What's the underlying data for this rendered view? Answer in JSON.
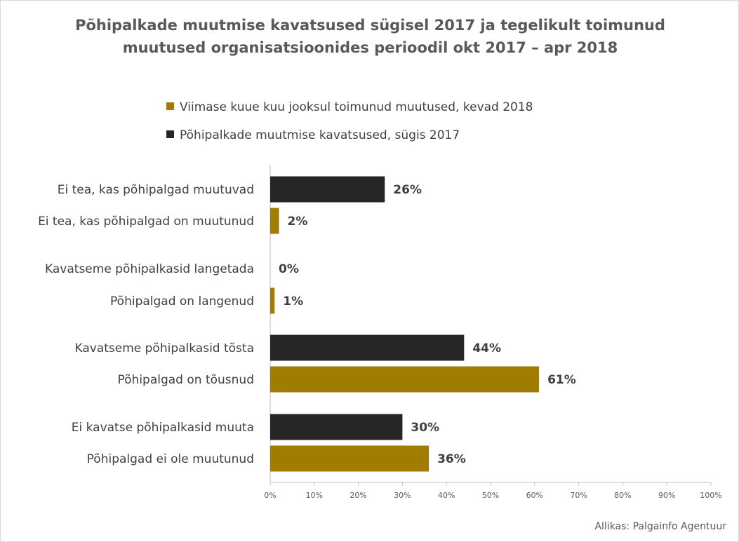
{
  "title": "Põhipalkade muutmise kavatsused sügisel 2017 ja tegelikult toimunud muutused organisatsioonides perioodil okt 2017 – apr 2018",
  "legend": [
    {
      "label": "Viimase kuue kuu jooksul toimunud muutused, kevad 2018",
      "color": "#a07d00"
    },
    {
      "label": "Põhipalkade muutmise kavatsused, sügis 2017",
      "color": "#262626"
    }
  ],
  "source": "Allikas: Palgainfo Agentuur",
  "chart_data": {
    "type": "bar",
    "orientation": "horizontal",
    "categories": [
      "Ei tea, kas põhipalgad muutuvad",
      "Ei tea, kas põhipalgad on muutunud",
      "Kavatseme põhipalkasid langetada",
      "Põhipalgad on langenud",
      "Kavatseme põhipalkasid tõsta",
      "Põhipalgad on tõusnud",
      "Ei kavatse põhipalkasid muuta",
      "Põhipalgad ei ole muutunud"
    ],
    "values": [
      26,
      2,
      0,
      1,
      44,
      61,
      30,
      36
    ],
    "value_labels": [
      "26%",
      "2%",
      "0%",
      "1%",
      "44%",
      "61%",
      "30%",
      "36%"
    ],
    "bar_series": [
      "sügis 2017",
      "kevad 2018",
      "sügis 2017",
      "kevad 2018",
      "sügis 2017",
      "kevad 2018",
      "sügis 2017",
      "kevad 2018"
    ],
    "series_colors": {
      "sügis 2017": "#262626",
      "kevad 2018": "#a07d00"
    },
    "x_ticks": [
      "0%",
      "10%",
      "20%",
      "30%",
      "40%",
      "50%",
      "60%",
      "70%",
      "80%",
      "90%",
      "100%"
    ],
    "xlim": [
      0,
      100
    ],
    "grid": false
  }
}
